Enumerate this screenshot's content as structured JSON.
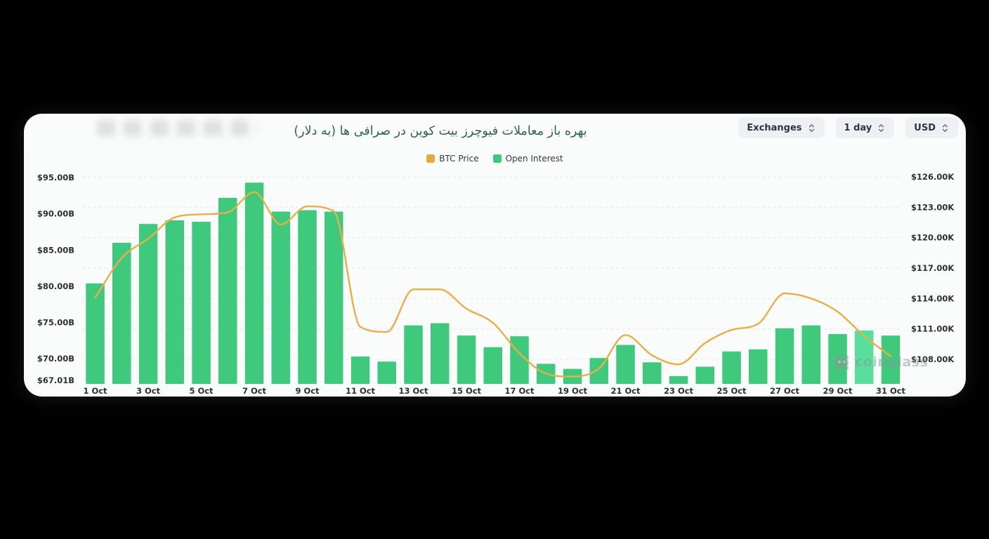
{
  "header": {
    "title": "بهره باز معاملات فیوچرز بیت کوین در صرافی ها (به دلار)",
    "controls": [
      {
        "label": "Exchanges"
      },
      {
        "label": "1 day"
      },
      {
        "label": "USD"
      }
    ]
  },
  "legend": [
    {
      "label": "BTC Price",
      "color": "#e4aa41"
    },
    {
      "label": "Open Interest",
      "color": "#3dc87d"
    }
  ],
  "watermark": {
    "text": "coinglass"
  },
  "colors": {
    "bar": "#3ec97d",
    "bar_highlight": "#58df9c",
    "line": "#e9ae46",
    "grid": "#e7e8ea",
    "axis_text": "#2d2f33",
    "background": "#000000",
    "card": "#fafbfb",
    "title": "#2f6057"
  },
  "chart_data": {
    "type": "combo-bar-line",
    "title": "بهره باز معاملات فیوچرز بیت کوین در صرافی ها (به دلار)",
    "grid": "dashed-horizontal",
    "legend_position": "top-center",
    "categories": [
      "1 Oct",
      "2 Oct",
      "3 Oct",
      "4 Oct",
      "5 Oct",
      "6 Oct",
      "7 Oct",
      "8 Oct",
      "9 Oct",
      "10 Oct",
      "11 Oct",
      "12 Oct",
      "13 Oct",
      "14 Oct",
      "15 Oct",
      "16 Oct",
      "17 Oct",
      "18 Oct",
      "19 Oct",
      "20 Oct",
      "21 Oct",
      "22 Oct",
      "23 Oct",
      "24 Oct",
      "25 Oct",
      "26 Oct",
      "27 Oct",
      "28 Oct",
      "29 Oct",
      "30 Oct",
      "31 Oct"
    ],
    "x_axis": {
      "visible_tick_labels": [
        "1 Oct",
        "3 Oct",
        "5 Oct",
        "7 Oct",
        "9 Oct",
        "11 Oct",
        "13 Oct",
        "15 Oct",
        "17 Oct",
        "19 Oct",
        "21 Oct",
        "23 Oct",
        "25 Oct",
        "27 Oct",
        "29 Oct",
        "31 Oct"
      ]
    },
    "left_axis": {
      "tick_labels": [
        "$95.00B",
        "$90.00B",
        "$85.00B",
        "$80.00B",
        "$75.00B",
        "$70.00B",
        "$67.01B"
      ],
      "tick_values": [
        95,
        90,
        85,
        80,
        75,
        70,
        67.01
      ],
      "max": 95,
      "min": 67.01,
      "unit": "USD billions"
    },
    "right_axis": {
      "tick_labels": [
        "$126.00K",
        "$123.00K",
        "$120.00K",
        "$117.00K",
        "$114.00K",
        "$111.00K",
        "$108.00K"
      ],
      "tick_values": [
        126,
        123,
        120,
        117,
        114,
        111,
        108
      ],
      "max": 126,
      "min": 108,
      "unit": "USD thousands"
    },
    "series": [
      {
        "name": "Open Interest",
        "type": "bar",
        "yaxis": "left",
        "unit": "billion USD",
        "highlighted_index": 29,
        "values": [
          80.4,
          86.0,
          88.6,
          89.1,
          88.9,
          92.2,
          94.3,
          90.3,
          90.5,
          90.3,
          70.3,
          69.6,
          74.6,
          74.9,
          73.2,
          71.6,
          73.1,
          69.3,
          68.6,
          70.1,
          71.9,
          69.5,
          67.6,
          68.9,
          71.0,
          71.3,
          74.2,
          74.6,
          73.4,
          73.9,
          73.2
        ]
      },
      {
        "name": "BTC Price",
        "type": "line",
        "yaxis": "right",
        "unit": "thousand USD",
        "values": [
          114.1,
          118.0,
          119.9,
          122.0,
          122.3,
          122.5,
          124.5,
          121.3,
          123.1,
          122.6,
          111.2,
          110.7,
          114.9,
          114.9,
          113.0,
          111.6,
          108.6,
          106.6,
          106.3,
          107.1,
          110.4,
          108.4,
          107.5,
          109.6,
          110.9,
          111.5,
          114.5,
          114.0,
          112.7,
          110.3,
          108.3
        ]
      }
    ]
  }
}
